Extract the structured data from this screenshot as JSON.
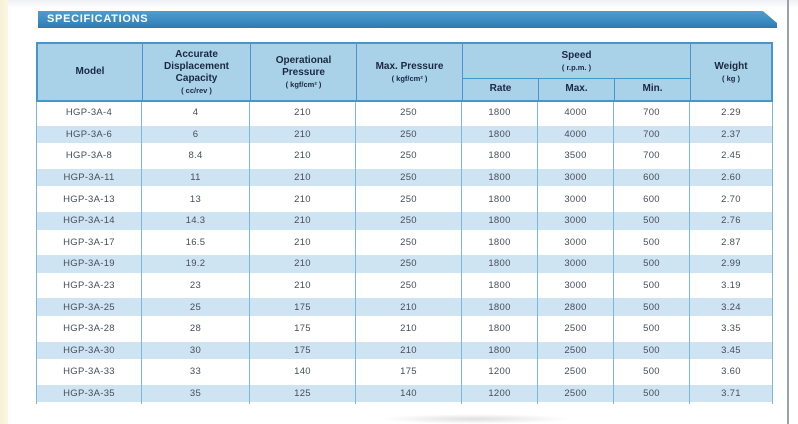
{
  "page": {
    "title": "SPECIFICATIONS"
  },
  "table": {
    "header": {
      "model": {
        "label": "Model"
      },
      "capacity": {
        "label": "Accurate Displacement Capacity",
        "unit": "( cc/rev )"
      },
      "op_pressure": {
        "label": "Operational Pressure",
        "unit": "( kgf/cm² )"
      },
      "max_pressure": {
        "label": "Max. Pressure",
        "unit": "( kgf/cm² )"
      },
      "speed": {
        "label": "Speed",
        "unit": "( r.p.m. )"
      },
      "speed_rate": {
        "label": "Rate"
      },
      "speed_max": {
        "label": "Max."
      },
      "speed_min": {
        "label": "Min."
      },
      "weight": {
        "label": "Weight",
        "unit": "( kg )"
      }
    },
    "column_keys": [
      "model",
      "capacity",
      "op_pressure",
      "max_pressure",
      "speed_rate",
      "speed_max",
      "speed_min",
      "weight"
    ],
    "rows": [
      [
        "HGP-3A-4",
        "4",
        "210",
        "250",
        "1800",
        "4000",
        "700",
        "2.29"
      ],
      [
        "HGP-3A-6",
        "6",
        "210",
        "250",
        "1800",
        "4000",
        "700",
        "2.37"
      ],
      [
        "HGP-3A-8",
        "8.4",
        "210",
        "250",
        "1800",
        "3500",
        "700",
        "2.45"
      ],
      [
        "HGP-3A-11",
        "11",
        "210",
        "250",
        "1800",
        "3000",
        "600",
        "2.60"
      ],
      [
        "HGP-3A-13",
        "13",
        "210",
        "250",
        "1800",
        "3000",
        "600",
        "2.70"
      ],
      [
        "HGP-3A-14",
        "14.3",
        "210",
        "250",
        "1800",
        "3000",
        "500",
        "2.76"
      ],
      [
        "HGP-3A-17",
        "16.5",
        "210",
        "250",
        "1800",
        "3000",
        "500",
        "2.87"
      ],
      [
        "HGP-3A-19",
        "19.2",
        "210",
        "250",
        "1800",
        "3000",
        "500",
        "2.99"
      ],
      [
        "HGP-3A-23",
        "23",
        "210",
        "250",
        "1800",
        "3000",
        "500",
        "3.19"
      ],
      [
        "HGP-3A-25",
        "25",
        "175",
        "210",
        "1800",
        "2800",
        "500",
        "3.24"
      ],
      [
        "HGP-3A-28",
        "28",
        "175",
        "210",
        "1800",
        "2500",
        "500",
        "3.35"
      ],
      [
        "HGP-3A-30",
        "30",
        "175",
        "210",
        "1800",
        "2500",
        "500",
        "3.45"
      ],
      [
        "HGP-3A-33",
        "33",
        "140",
        "175",
        "1200",
        "2500",
        "500",
        "3.60"
      ],
      [
        "HGP-3A-35",
        "35",
        "125",
        "140",
        "1200",
        "2500",
        "500",
        "3.71"
      ]
    ]
  },
  "colors": {
    "title_bar_blue": "#3787bd",
    "header_cell_blue": "#a9d2e9",
    "header_border_blue": "#4796c9",
    "row_stripe_blue": "#cfe4f3",
    "body_border_blue": "#7db7de",
    "header_text": "#1a2742",
    "data_text": "#474d59",
    "left_edge_strip": "#f6f1d4",
    "right_edge_line": "#9aa1a9"
  }
}
